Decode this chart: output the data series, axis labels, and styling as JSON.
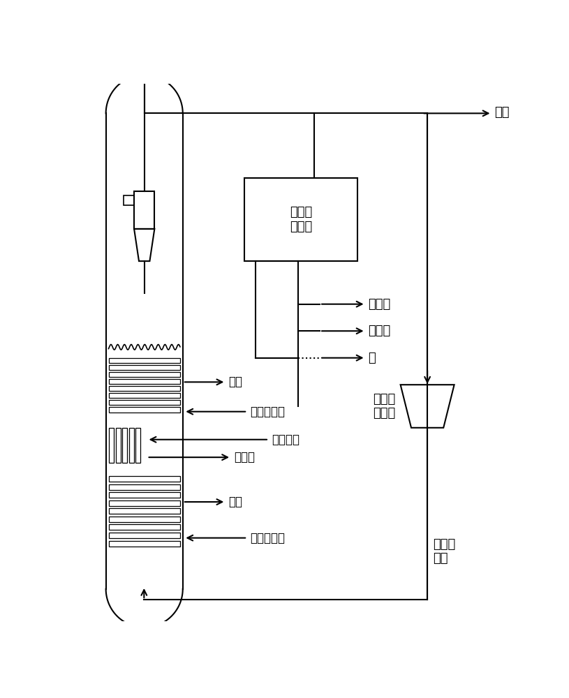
{
  "bg_color": "#ffffff",
  "line_color": "#000000",
  "text_color": "#000000",
  "labels": {
    "gas_liquid_sep": "气液分\n离系统",
    "tail_gas": "尾气",
    "light_oil": "轻质油",
    "heavy_oil": "重质油",
    "water": "水",
    "recycle_compressor": "循环气\n压缩机",
    "outlet1": "出口",
    "sat_water_inlet1": "饱和水入口",
    "blowback_gas": "反吹气体",
    "fischer_tropsch_wax": "费托蜗",
    "outlet2": "出口",
    "sat_water_inlet2": "饱和水入口",
    "fresh_syngas": "新鲜合\n成气"
  },
  "lw": 1.5
}
